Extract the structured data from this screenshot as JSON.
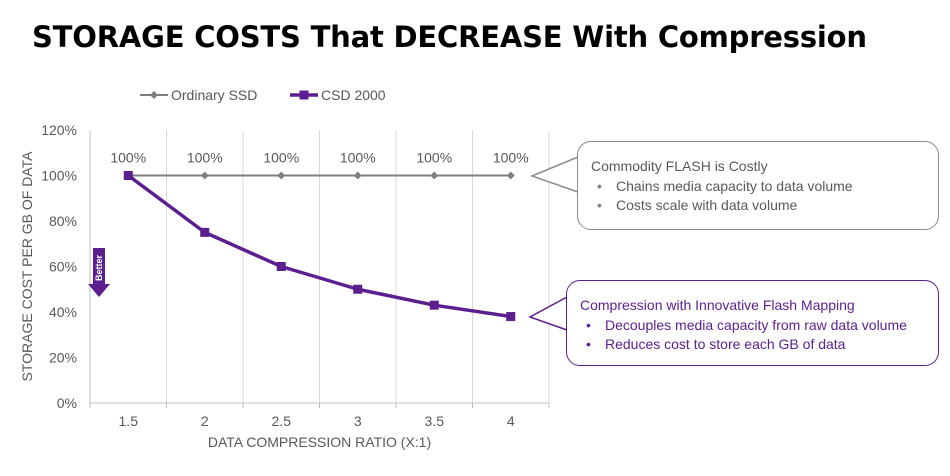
{
  "title": "STORAGE COSTS That DECREASE With Compression",
  "chart_data": {
    "type": "line",
    "x": [
      1.5,
      2,
      2.5,
      3,
      3.5,
      4
    ],
    "x_tick_labels": [
      "1.5",
      "2",
      "2.5",
      "3",
      "3.5",
      "4"
    ],
    "xlabel": "DATA COMPRESSION RATIO (X:1)",
    "ylabel": "STORAGE COST PER GB OF DATA",
    "ylim": [
      0,
      120
    ],
    "y_ticks": [
      0,
      20,
      40,
      60,
      80,
      100,
      120
    ],
    "y_tick_labels": [
      "0%",
      "20%",
      "40%",
      "60%",
      "80%",
      "100%",
      "120%"
    ],
    "grid": "vertical",
    "legend_position": "top",
    "series": [
      {
        "name": "Ordinary SSD",
        "values": [
          100,
          100,
          100,
          100,
          100,
          100
        ],
        "data_labels": [
          "100%",
          "100%",
          "100%",
          "100%",
          "100%",
          "100%"
        ],
        "color": "#7f7f7f",
        "marker": "diamond"
      },
      {
        "name": "CSD 2000",
        "values": [
          100,
          75,
          60,
          50,
          43,
          38
        ],
        "color": "#5b1f8f",
        "marker": "square"
      }
    ],
    "better_arrow": {
      "label": "Better",
      "color": "#5b1f8f"
    }
  },
  "callouts": {
    "gray": {
      "title": "Commodity FLASH is Costly",
      "bullets": [
        "Chains media capacity to data volume",
        "Costs scale with data volume"
      ],
      "border_color": "#8c8c8c"
    },
    "purple": {
      "title": "Compression with Innovative Flash Mapping",
      "bullets": [
        "Decouples media capacity from raw data volume",
        "Reduces cost to store each GB of data"
      ],
      "border_color": "#5b1f8f"
    }
  }
}
